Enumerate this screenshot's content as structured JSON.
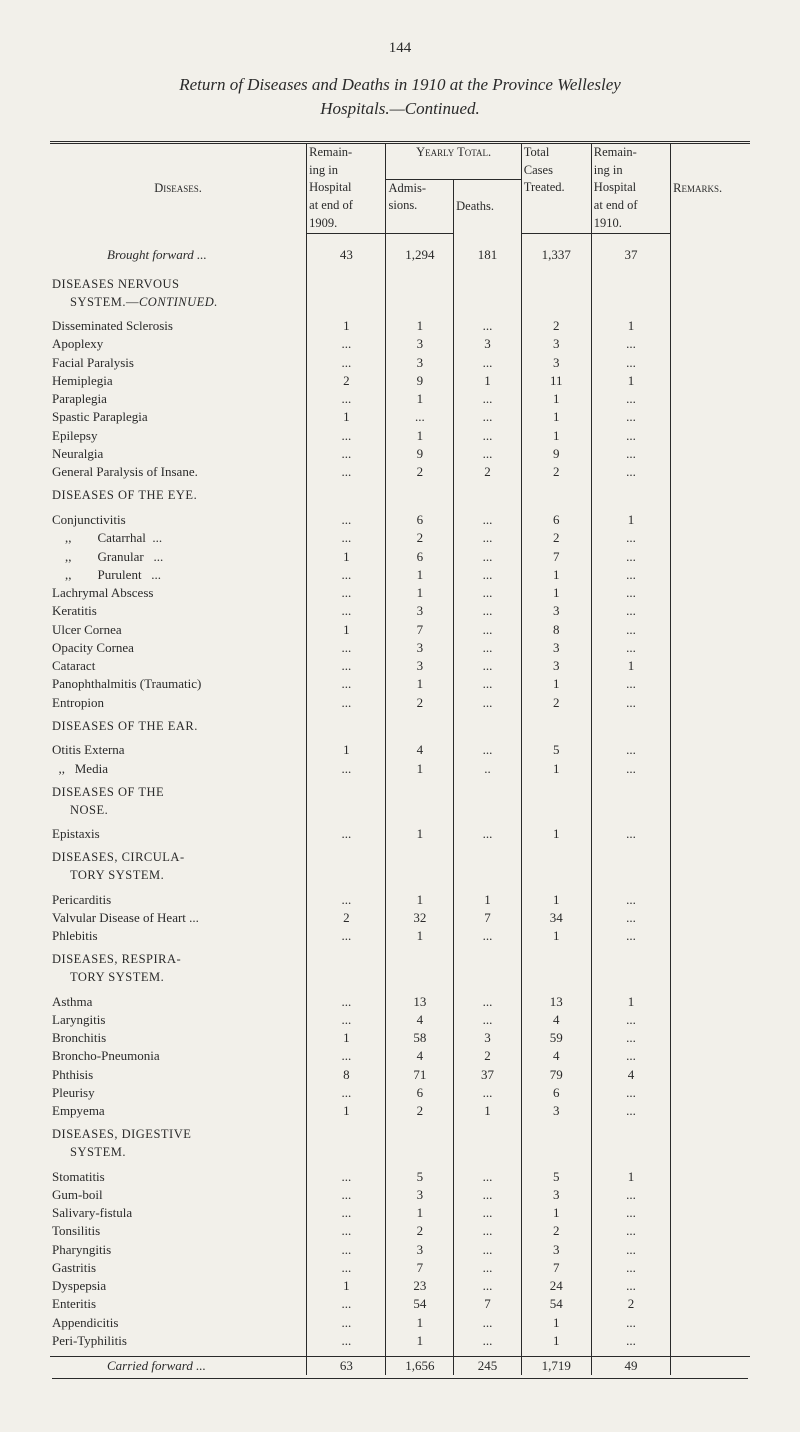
{
  "page_number": "144",
  "title": "Return of Diseases and Deaths in 1910 at the Province Wellesley",
  "subtitle": "Hospitals.—Continued.",
  "headers": {
    "diseases": "Diseases.",
    "remain09_a": "Remain-",
    "remain09_b": "ing in",
    "remain09_c": "Hospital",
    "remain09_d": "at end of",
    "remain09_e": "1909.",
    "yearly": "Yearly Total.",
    "admis_a": "Admis-",
    "admis_b": "sions.",
    "deaths": "Deaths.",
    "total_a": "Total",
    "total_b": "Cases",
    "total_c": "Treated.",
    "remain10_a": "Remain-",
    "remain10_b": "ing in",
    "remain10_c": "Hospital",
    "remain10_d": "at end of",
    "remain10_e": "1910.",
    "remarks": "Remarks."
  },
  "brought": {
    "label": "Brought forward ...",
    "r09": "43",
    "adm": "1,294",
    "dth": "181",
    "tot": "1,337",
    "r10": "37"
  },
  "sections": [
    {
      "heading": [
        "DISEASES NERVOUS",
        "SYSTEM.—"
      ],
      "heading_cont": "Continued.",
      "rows": [
        {
          "n": "Disseminated Sclerosis",
          "r09": "1",
          "adm": "1",
          "dth": "...",
          "tot": "2",
          "r10": "1"
        },
        {
          "n": "Apoplexy",
          "r09": "...",
          "adm": "3",
          "dth": "3",
          "tot": "3",
          "r10": "..."
        },
        {
          "n": "Facial Paralysis",
          "r09": "...",
          "adm": "3",
          "dth": "...",
          "tot": "3",
          "r10": "..."
        },
        {
          "n": "Hemiplegia",
          "r09": "2",
          "adm": "9",
          "dth": "1",
          "tot": "11",
          "r10": "1"
        },
        {
          "n": "Paraplegia",
          "r09": "...",
          "adm": "1",
          "dth": "...",
          "tot": "1",
          "r10": "..."
        },
        {
          "n": "Spastic Paraplegia",
          "r09": "1",
          "adm": "...",
          "dth": "...",
          "tot": "1",
          "r10": "..."
        },
        {
          "n": "Epilepsy",
          "r09": "...",
          "adm": "1",
          "dth": "...",
          "tot": "1",
          "r10": "..."
        },
        {
          "n": "Neuralgia",
          "r09": "...",
          "adm": "9",
          "dth": "...",
          "tot": "9",
          "r10": "..."
        },
        {
          "n": "General Paralysis of Insane.",
          "r09": "...",
          "adm": "2",
          "dth": "2",
          "tot": "2",
          "r10": "..."
        }
      ]
    },
    {
      "heading": [
        "DISEASES OF THE EYE."
      ],
      "rows": [
        {
          "n": "Conjunctivitis",
          "r09": "...",
          "adm": "6",
          "dth": "...",
          "tot": "6",
          "r10": "1"
        },
        {
          "n": "    ,,        Catarrhal  ...",
          "r09": "...",
          "adm": "2",
          "dth": "...",
          "tot": "2",
          "r10": "..."
        },
        {
          "n": "    ,,        Granular   ...",
          "r09": "1",
          "adm": "6",
          "dth": "...",
          "tot": "7",
          "r10": "..."
        },
        {
          "n": "    ,,        Purulent   ...",
          "r09": "...",
          "adm": "1",
          "dth": "...",
          "tot": "1",
          "r10": "..."
        },
        {
          "n": "Lachrymal Abscess",
          "r09": "...",
          "adm": "1",
          "dth": "...",
          "tot": "1",
          "r10": "..."
        },
        {
          "n": "Keratitis",
          "r09": "...",
          "adm": "3",
          "dth": "...",
          "tot": "3",
          "r10": "..."
        },
        {
          "n": "Ulcer Cornea",
          "r09": "1",
          "adm": "7",
          "dth": "...",
          "tot": "8",
          "r10": "..."
        },
        {
          "n": "Opacity Cornea",
          "r09": "...",
          "adm": "3",
          "dth": "...",
          "tot": "3",
          "r10": "..."
        },
        {
          "n": "Cataract",
          "r09": "...",
          "adm": "3",
          "dth": "...",
          "tot": "3",
          "r10": "1"
        },
        {
          "n": "Panophthalmitis (Traumatic)",
          "r09": "...",
          "adm": "1",
          "dth": "...",
          "tot": "1",
          "r10": "..."
        },
        {
          "n": "Entropion",
          "r09": "...",
          "adm": "2",
          "dth": "...",
          "tot": "2",
          "r10": "..."
        }
      ]
    },
    {
      "heading": [
        "DISEASES OF THE EAR."
      ],
      "rows": [
        {
          "n": "Otitis Externa",
          "r09": "1",
          "adm": "4",
          "dth": "...",
          "tot": "5",
          "r10": "..."
        },
        {
          "n": "  ,,   Media",
          "r09": "...",
          "adm": "1",
          "dth": "..",
          "tot": "1",
          "r10": "..."
        }
      ]
    },
    {
      "heading": [
        "DISEASES OF THE",
        "NOSE."
      ],
      "rows": [
        {
          "n": "Epistaxis",
          "r09": "...",
          "adm": "1",
          "dth": "...",
          "tot": "1",
          "r10": "..."
        }
      ]
    },
    {
      "heading": [
        "DISEASES, CIRCULA-",
        "TORY SYSTEM."
      ],
      "rows": [
        {
          "n": "Pericarditis",
          "r09": "...",
          "adm": "1",
          "dth": "1",
          "tot": "1",
          "r10": "..."
        },
        {
          "n": "Valvular Disease of Heart ...",
          "r09": "2",
          "adm": "32",
          "dth": "7",
          "tot": "34",
          "r10": "..."
        },
        {
          "n": "Phlebitis",
          "r09": "...",
          "adm": "1",
          "dth": "...",
          "tot": "1",
          "r10": "..."
        }
      ]
    },
    {
      "heading": [
        "DISEASES, RESPIRA-",
        "TORY SYSTEM."
      ],
      "rows": [
        {
          "n": "Asthma",
          "r09": "...",
          "adm": "13",
          "dth": "...",
          "tot": "13",
          "r10": "1"
        },
        {
          "n": "Laryngitis",
          "r09": "...",
          "adm": "4",
          "dth": "...",
          "tot": "4",
          "r10": "..."
        },
        {
          "n": "Bronchitis",
          "r09": "1",
          "adm": "58",
          "dth": "3",
          "tot": "59",
          "r10": "..."
        },
        {
          "n": "Broncho-Pneumonia",
          "r09": "...",
          "adm": "4",
          "dth": "2",
          "tot": "4",
          "r10": "..."
        },
        {
          "n": "Phthisis",
          "r09": "8",
          "adm": "71",
          "dth": "37",
          "tot": "79",
          "r10": "4"
        },
        {
          "n": "Pleurisy",
          "r09": "...",
          "adm": "6",
          "dth": "...",
          "tot": "6",
          "r10": "..."
        },
        {
          "n": "Empyema",
          "r09": "1",
          "adm": "2",
          "dth": "1",
          "tot": "3",
          "r10": "..."
        }
      ]
    },
    {
      "heading": [
        "DISEASES, DIGESTIVE",
        "SYSTEM."
      ],
      "rows": [
        {
          "n": "Stomatitis",
          "r09": "...",
          "adm": "5",
          "dth": "...",
          "tot": "5",
          "r10": "1"
        },
        {
          "n": "Gum-boil",
          "r09": "...",
          "adm": "3",
          "dth": "...",
          "tot": "3",
          "r10": "..."
        },
        {
          "n": "Salivary-fistula",
          "r09": "...",
          "adm": "1",
          "dth": "...",
          "tot": "1",
          "r10": "..."
        },
        {
          "n": "Tonsilitis",
          "r09": "...",
          "adm": "2",
          "dth": "...",
          "tot": "2",
          "r10": "..."
        },
        {
          "n": "Pharyngitis",
          "r09": "...",
          "adm": "3",
          "dth": "...",
          "tot": "3",
          "r10": "..."
        },
        {
          "n": "Gastritis",
          "r09": "...",
          "adm": "7",
          "dth": "...",
          "tot": "7",
          "r10": "..."
        },
        {
          "n": "Dyspepsia",
          "r09": "1",
          "adm": "23",
          "dth": "...",
          "tot": "24",
          "r10": "..."
        },
        {
          "n": "Enteritis",
          "r09": "...",
          "adm": "54",
          "dth": "7",
          "tot": "54",
          "r10": "2"
        },
        {
          "n": "Appendicitis",
          "r09": "...",
          "adm": "1",
          "dth": "...",
          "tot": "1",
          "r10": "..."
        },
        {
          "n": "Peri-Typhilitis",
          "r09": "...",
          "adm": "1",
          "dth": "...",
          "tot": "1",
          "r10": "..."
        }
      ]
    }
  ],
  "carried": {
    "label": "Carried forward ...",
    "r09": "63",
    "adm": "1,656",
    "dth": "245",
    "tot": "1,719",
    "r10": "49"
  },
  "style": {
    "bg": "#f2f0ea",
    "text": "#2a2a2a"
  }
}
